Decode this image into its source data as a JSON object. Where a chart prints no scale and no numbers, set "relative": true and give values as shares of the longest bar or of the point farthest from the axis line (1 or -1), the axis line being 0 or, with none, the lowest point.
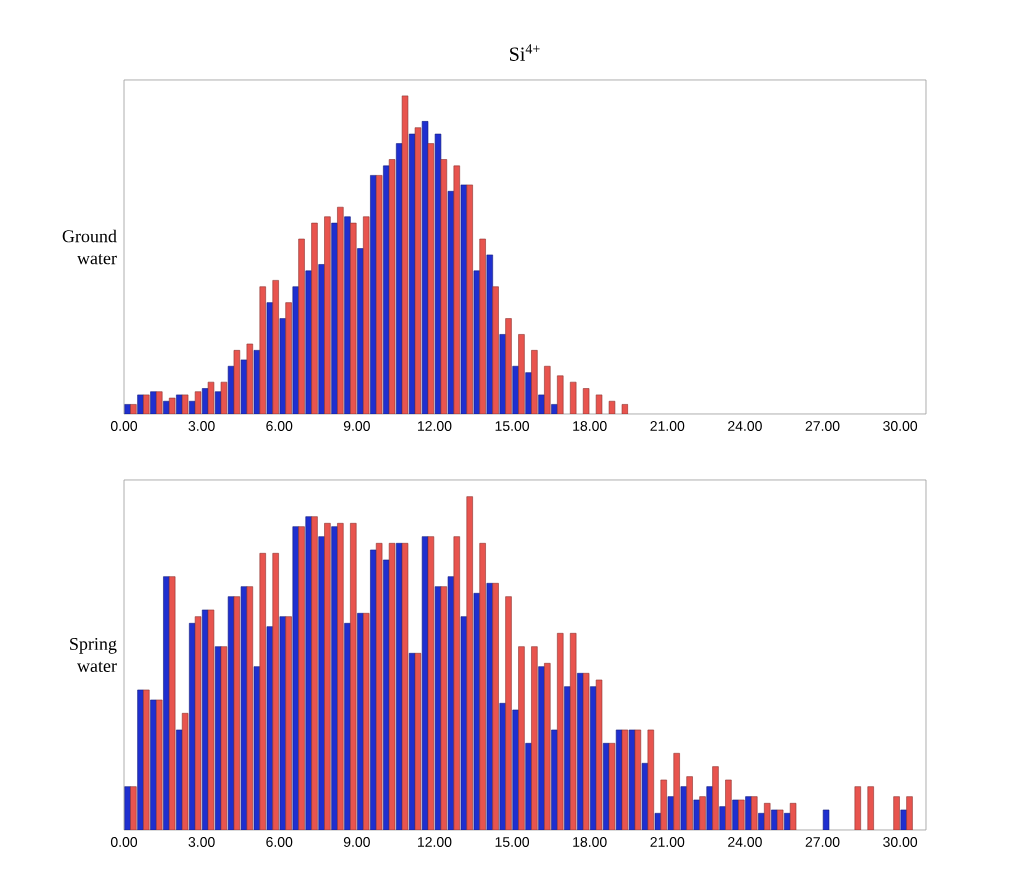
{
  "chart_data": [
    {
      "type": "bar",
      "title": "Si$^{4+}$",
      "ylabel": "Ground water",
      "relative": true,
      "x": [
        0.25,
        0.75,
        1.25,
        1.75,
        2.25,
        2.75,
        3.25,
        3.75,
        4.25,
        4.75,
        5.25,
        5.75,
        6.25,
        6.75,
        7.25,
        7.75,
        8.25,
        8.75,
        9.25,
        9.75,
        10.25,
        10.75,
        11.25,
        11.75,
        12.25,
        12.75,
        13.25,
        13.75,
        14.25,
        14.75,
        15.25,
        15.75,
        16.25,
        16.75,
        17.25,
        17.75,
        18.25,
        18.75,
        19.25,
        19.75,
        20.25,
        20.75,
        21.25,
        21.75,
        22.25,
        22.75,
        23.25,
        23.75,
        24.25,
        24.75,
        25.25,
        25.75,
        26.25,
        26.75,
        27.25,
        27.75,
        28.25,
        28.75,
        29.25,
        29.75,
        30.25,
        30.75
      ],
      "xlim": [
        0,
        31
      ],
      "xticks": [
        {
          "value": 0,
          "label": "0.00"
        },
        {
          "value": 3,
          "label": "3.00"
        },
        {
          "value": 6,
          "label": "6.00"
        },
        {
          "value": 9,
          "label": "9.00"
        },
        {
          "value": 12,
          "label": "12.00"
        },
        {
          "value": 15,
          "label": "15.00"
        },
        {
          "value": 18,
          "label": "18.00"
        },
        {
          "value": 21,
          "label": "21.00"
        },
        {
          "value": 24,
          "label": "24.00"
        },
        {
          "value": 27,
          "label": "27.00"
        },
        {
          "value": 30,
          "label": "30.00"
        }
      ],
      "series": [
        {
          "color": "#1f2fcf",
          "values": [
            0.03,
            0.06,
            0.07,
            0.04,
            0.06,
            0.04,
            0.08,
            0.07,
            0.15,
            0.17,
            0.2,
            0.35,
            0.3,
            0.4,
            0.45,
            0.47,
            0.6,
            0.62,
            0.52,
            0.75,
            0.78,
            0.85,
            0.88,
            0.92,
            0.88,
            0.7,
            0.72,
            0.45,
            0.5,
            0.25,
            0.15,
            0.13,
            0.06,
            0.03,
            0,
            0,
            0,
            0,
            0,
            0,
            0,
            0,
            0,
            0,
            0,
            0,
            0,
            0,
            0,
            0,
            0,
            0,
            0,
            0,
            0,
            0,
            0,
            0,
            0,
            0,
            0,
            0
          ]
        },
        {
          "color": "#e8544e",
          "values": [
            0.03,
            0.06,
            0.07,
            0.05,
            0.06,
            0.07,
            0.1,
            0.1,
            0.2,
            0.22,
            0.4,
            0.42,
            0.35,
            0.55,
            0.6,
            0.62,
            0.65,
            0.6,
            0.62,
            0.75,
            0.8,
            1.0,
            0.9,
            0.85,
            0.8,
            0.78,
            0.72,
            0.55,
            0.4,
            0.3,
            0.25,
            0.2,
            0.15,
            0.12,
            0.1,
            0.08,
            0.06,
            0.04,
            0.03,
            0,
            0,
            0,
            0,
            0,
            0,
            0,
            0,
            0,
            0,
            0,
            0,
            0,
            0,
            0,
            0,
            0,
            0,
            0,
            0,
            0,
            0,
            0
          ]
        }
      ]
    },
    {
      "type": "bar",
      "ylabel": "Spring water",
      "relative": true,
      "x": [
        0.25,
        0.75,
        1.25,
        1.75,
        2.25,
        2.75,
        3.25,
        3.75,
        4.25,
        4.75,
        5.25,
        5.75,
        6.25,
        6.75,
        7.25,
        7.75,
        8.25,
        8.75,
        9.25,
        9.75,
        10.25,
        10.75,
        11.25,
        11.75,
        12.25,
        12.75,
        13.25,
        13.75,
        14.25,
        14.75,
        15.25,
        15.75,
        16.25,
        16.75,
        17.25,
        17.75,
        18.25,
        18.75,
        19.25,
        19.75,
        20.25,
        20.75,
        21.25,
        21.75,
        22.25,
        22.75,
        23.25,
        23.75,
        24.25,
        24.75,
        25.25,
        25.75,
        26.25,
        26.75,
        27.25,
        27.75,
        28.25,
        28.75,
        29.25,
        29.75,
        30.25,
        30.75
      ],
      "xlim": [
        0,
        31
      ],
      "xticks": [
        {
          "value": 0,
          "label": "0.00"
        },
        {
          "value": 3,
          "label": "3.00"
        },
        {
          "value": 6,
          "label": "6.00"
        },
        {
          "value": 9,
          "label": "9.00"
        },
        {
          "value": 12,
          "label": "12.00"
        },
        {
          "value": 15,
          "label": "15.00"
        },
        {
          "value": 18,
          "label": "18.00"
        },
        {
          "value": 21,
          "label": "21.00"
        },
        {
          "value": 24,
          "label": "24.00"
        },
        {
          "value": 27,
          "label": "27.00"
        },
        {
          "value": 30,
          "label": "30.00"
        }
      ],
      "series": [
        {
          "color": "#1f2fcf",
          "values": [
            0.13,
            0.42,
            0.39,
            0.76,
            0.3,
            0.62,
            0.66,
            0.55,
            0.7,
            0.73,
            0.49,
            0.61,
            0.64,
            0.91,
            0.94,
            0.88,
            0.91,
            0.62,
            0.65,
            0.84,
            0.81,
            0.86,
            0.53,
            0.88,
            0.73,
            0.76,
            0.64,
            0.71,
            0.74,
            0.38,
            0.36,
            0.26,
            0.49,
            0.3,
            0.43,
            0.47,
            0.43,
            0.26,
            0.3,
            0.3,
            0.2,
            0.05,
            0.1,
            0.13,
            0.09,
            0.13,
            0.07,
            0.09,
            0.1,
            0.05,
            0.06,
            0.05,
            0,
            0,
            0.06,
            0,
            0,
            0,
            0,
            0,
            0.06,
            0
          ]
        },
        {
          "color": "#e8544e",
          "values": [
            0.13,
            0.42,
            0.39,
            0.76,
            0.35,
            0.64,
            0.66,
            0.55,
            0.7,
            0.73,
            0.83,
            0.83,
            0.64,
            0.91,
            0.94,
            0.92,
            0.92,
            0.92,
            0.65,
            0.86,
            0.86,
            0.86,
            0.53,
            0.88,
            0.73,
            0.88,
            1.0,
            0.86,
            0.74,
            0.7,
            0.55,
            0.55,
            0.5,
            0.59,
            0.59,
            0.47,
            0.45,
            0.26,
            0.3,
            0.3,
            0.3,
            0.15,
            0.23,
            0.16,
            0.1,
            0.19,
            0.15,
            0.09,
            0.1,
            0.08,
            0.06,
            0.08,
            0,
            0,
            0,
            0,
            0.13,
            0.13,
            0,
            0.1,
            0.1,
            0
          ]
        }
      ]
    }
  ]
}
